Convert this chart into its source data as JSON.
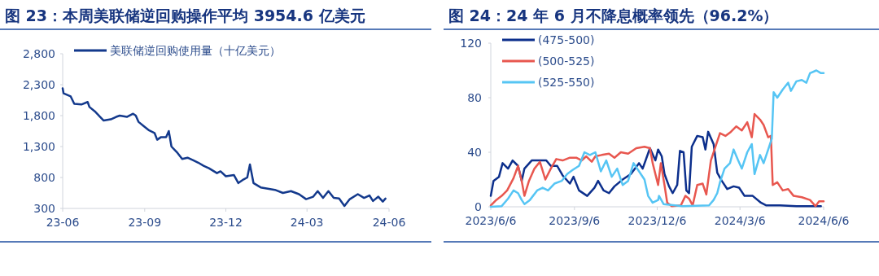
{
  "chart_data": [
    {
      "type": "line",
      "title": "图 23：本周美联储逆回购操作平均 3954.6 亿美元",
      "legend": "top left",
      "xlim": [
        "2023-06",
        "2024-06"
      ],
      "xticks": [
        {
          "value": "2023-06",
          "label": "23-06"
        },
        {
          "value": "2023-09",
          "label": "23-09"
        },
        {
          "value": "2023-12",
          "label": "23-12"
        },
        {
          "value": "2024-03",
          "label": "24-03"
        },
        {
          "value": "2024-06",
          "label": "24-06"
        }
      ],
      "ylim": [
        300,
        2800
      ],
      "yticks": [
        300,
        800,
        {
          "value": 1300,
          "label": "1,300"
        },
        {
          "value": 1800,
          "label": "1,800"
        },
        {
          "value": 2300,
          "label": "2,300"
        },
        {
          "value": 2800,
          "label": "2,800"
        }
      ],
      "series": [
        {
          "name": "美联储逆回购使用量（十亿美元）",
          "color": "#13398c",
          "x": [
            "2023-06-01",
            "2023-06-02",
            "2023-06-10",
            "2023-06-14",
            "2023-06-22",
            "2023-06-29",
            "2023-07-01",
            "2023-07-07",
            "2023-07-13",
            "2023-07-17",
            "2023-07-25",
            "2023-07-31",
            "2023-08-04",
            "2023-08-12",
            "2023-08-19",
            "2023-08-22",
            "2023-08-25",
            "2023-08-31",
            "2023-09-06",
            "2023-09-12",
            "2023-09-15",
            "2023-09-19",
            "2023-09-25",
            "2023-09-28",
            "2023-10-01",
            "2023-10-07",
            "2023-10-13",
            "2023-10-19",
            "2023-10-25",
            "2023-10-31",
            "2023-11-06",
            "2023-11-12",
            "2023-11-21",
            "2023-11-25",
            "2023-12-01",
            "2023-12-10",
            "2023-12-15",
            "2023-12-21",
            "2023-12-25",
            "2023-12-28",
            "2024-01-01",
            "2024-01-09",
            "2024-01-17",
            "2024-01-25",
            "2024-02-03",
            "2024-02-12",
            "2024-02-21",
            "2024-02-29",
            "2024-03-08",
            "2024-03-13",
            "2024-03-19",
            "2024-03-25",
            "2024-03-31",
            "2024-04-06",
            "2024-04-12",
            "2024-04-18",
            "2024-04-27",
            "2024-05-04",
            "2024-05-10",
            "2024-05-14",
            "2024-05-20",
            "2024-05-25",
            "2024-05-28"
          ],
          "values": [
            2240,
            2160,
            2110,
            1990,
            1980,
            2020,
            1940,
            1870,
            1780,
            1720,
            1740,
            1780,
            1800,
            1780,
            1830,
            1800,
            1700,
            1630,
            1560,
            1520,
            1410,
            1450,
            1450,
            1550,
            1300,
            1210,
            1100,
            1120,
            1080,
            1040,
            990,
            950,
            870,
            900,
            820,
            840,
            710,
            770,
            800,
            1010,
            710,
            640,
            620,
            600,
            550,
            580,
            530,
            450,
            490,
            580,
            470,
            580,
            470,
            460,
            340,
            450,
            530,
            470,
            510,
            420,
            490,
            410,
            460
          ]
        }
      ]
    },
    {
      "type": "line",
      "title": "图 24：24 年 6 月不降息概率领先（96.2%）",
      "legend": "top left",
      "xlim": [
        "2023-06-06",
        "2024-06-06"
      ],
      "xticks": [
        {
          "value": "2023-06-06",
          "label": "2023/6/6"
        },
        {
          "value": "2023-09-06",
          "label": "2023/9/6"
        },
        {
          "value": "2023-12-06",
          "label": "2023/12/6"
        },
        {
          "value": "2024-03-06",
          "label": "2024/3/6"
        },
        {
          "value": "2024-06-06",
          "label": "2024/6/6"
        }
      ],
      "ylim": [
        0,
        120
      ],
      "yticks": [
        0,
        40,
        80,
        120
      ],
      "series": [
        {
          "name": "(475-500)",
          "color": "#0c2f8c",
          "x": [
            "2023-06-06",
            "2023-06-09",
            "2023-06-15",
            "2023-06-19",
            "2023-06-25",
            "2023-06-30",
            "2023-07-06",
            "2023-07-10",
            "2023-07-13",
            "2023-07-21",
            "2023-07-28",
            "2023-08-06",
            "2023-08-11",
            "2023-08-18",
            "2023-08-24",
            "2023-09-01",
            "2023-09-05",
            "2023-09-11",
            "2023-09-20",
            "2023-09-28",
            "2023-10-02",
            "2023-10-08",
            "2023-10-14",
            "2023-10-20",
            "2023-10-29",
            "2023-11-07",
            "2023-11-16",
            "2023-11-20",
            "2023-11-28",
            "2023-12-04",
            "2023-12-07",
            "2023-12-11",
            "2023-12-14",
            "2023-12-19",
            "2023-12-23",
            "2023-12-28",
            "2023-12-31",
            "2024-01-04",
            "2024-01-07",
            "2024-01-10",
            "2024-01-13",
            "2024-01-19",
            "2024-01-25",
            "2024-01-28",
            "2024-01-31",
            "2024-02-06",
            "2024-02-10",
            "2024-02-15",
            "2024-02-21",
            "2024-02-28",
            "2024-03-05",
            "2024-03-11",
            "2024-03-20",
            "2024-03-29",
            "2024-04-04",
            "2024-04-19",
            "2024-05-07",
            "2024-06-03"
          ],
          "values": [
            8,
            19,
            22,
            32,
            28,
            34,
            30,
            19,
            28,
            34,
            34,
            34,
            30,
            30,
            23,
            17,
            22,
            12,
            8,
            14,
            19,
            12,
            10,
            15,
            20,
            24,
            32,
            28,
            43,
            34,
            42,
            37,
            24,
            15,
            10,
            16,
            41,
            40,
            12,
            10,
            44,
            52,
            51,
            42,
            55,
            46,
            25,
            19,
            13,
            15,
            14,
            8,
            8,
            3,
            1,
            1,
            0.5,
            0.5
          ]
        },
        {
          "name": "(500-525)",
          "color": "#e8574f",
          "x": [
            "2023-06-06",
            "2023-06-12",
            "2023-06-18",
            "2023-06-24",
            "2023-07-01",
            "2023-07-06",
            "2023-07-10",
            "2023-07-13",
            "2023-07-18",
            "2023-07-24",
            "2023-07-30",
            "2023-08-05",
            "2023-08-11",
            "2023-08-17",
            "2023-08-24",
            "2023-09-01",
            "2023-09-08",
            "2023-09-14",
            "2023-09-19",
            "2023-09-25",
            "2023-09-29",
            "2023-10-06",
            "2023-10-14",
            "2023-10-20",
            "2023-10-27",
            "2023-11-04",
            "2023-11-13",
            "2023-11-22",
            "2023-11-28",
            "2023-12-01",
            "2023-12-07",
            "2023-12-10",
            "2023-12-14",
            "2023-12-17",
            "2023-12-22",
            "2024-01-01",
            "2024-01-06",
            "2024-01-10",
            "2024-01-14",
            "2024-01-19",
            "2024-01-25",
            "2024-01-29",
            "2024-02-03",
            "2024-02-07",
            "2024-02-13",
            "2024-02-19",
            "2024-02-25",
            "2024-03-02",
            "2024-03-08",
            "2024-03-14",
            "2024-03-19",
            "2024-03-22",
            "2024-03-28",
            "2024-04-01",
            "2024-04-06",
            "2024-04-09",
            "2024-04-11",
            "2024-04-16",
            "2024-04-22",
            "2024-04-28",
            "2024-05-04",
            "2024-05-13",
            "2024-05-22",
            "2024-05-28",
            "2024-06-01",
            "2024-06-06"
          ],
          "values": [
            1,
            5,
            8,
            12,
            21,
            30,
            19,
            8,
            19,
            28,
            33,
            20,
            28,
            35,
            34,
            36,
            36,
            34,
            37,
            33,
            37,
            38,
            39,
            36,
            40,
            39,
            43,
            44,
            43,
            32,
            16,
            32,
            16,
            3,
            0.5,
            1,
            8,
            6,
            1,
            16,
            17,
            9,
            34,
            42,
            54,
            52,
            55,
            59,
            56,
            62,
            51,
            68,
            64,
            60,
            51,
            52,
            16,
            18,
            12,
            13,
            8,
            7,
            5,
            0.5,
            4,
            4
          ]
        },
        {
          "name": "(525-550)",
          "color": "#56c5f4",
          "x": [
            "2023-06-06",
            "2023-06-18",
            "2023-06-25",
            "2023-07-01",
            "2023-07-06",
            "2023-07-10",
            "2023-07-13",
            "2023-07-19",
            "2023-07-27",
            "2023-08-02",
            "2023-08-08",
            "2023-08-15",
            "2023-08-23",
            "2023-08-29",
            "2023-09-04",
            "2023-09-11",
            "2023-09-17",
            "2023-09-23",
            "2023-09-29",
            "2023-10-05",
            "2023-10-11",
            "2023-10-17",
            "2023-10-23",
            "2023-10-29",
            "2023-11-04",
            "2023-11-10",
            "2023-11-16",
            "2023-11-22",
            "2023-11-26",
            "2023-12-01",
            "2023-12-07",
            "2023-12-08",
            "2023-12-13",
            "2024-01-03",
            "2024-02-01",
            "2024-02-06",
            "2024-02-10",
            "2024-02-13",
            "2024-02-18",
            "2024-02-24",
            "2024-02-28",
            "2024-03-04",
            "2024-03-08",
            "2024-03-14",
            "2024-03-19",
            "2024-03-22",
            "2024-03-28",
            "2024-04-01",
            "2024-04-07",
            "2024-04-10",
            "2024-04-12",
            "2024-04-16",
            "2024-04-22",
            "2024-04-28",
            "2024-05-01",
            "2024-05-07",
            "2024-05-13",
            "2024-05-18",
            "2024-05-22",
            "2024-05-29",
            "2024-06-03",
            "2024-06-06"
          ],
          "values": [
            0,
            0.5,
            6,
            12,
            10,
            5,
            2,
            5,
            12,
            14,
            12,
            17,
            19,
            24,
            27,
            30,
            40,
            38,
            40,
            26,
            34,
            22,
            28,
            16,
            19,
            32,
            26,
            20,
            8,
            3,
            5,
            8,
            2,
            0.5,
            1,
            5,
            10,
            18,
            28,
            32,
            42,
            34,
            28,
            40,
            46,
            24,
            38,
            32,
            44,
            50,
            84,
            80,
            86,
            91,
            85,
            92,
            93,
            91,
            98,
            100,
            98,
            98
          ]
        }
      ]
    }
  ]
}
